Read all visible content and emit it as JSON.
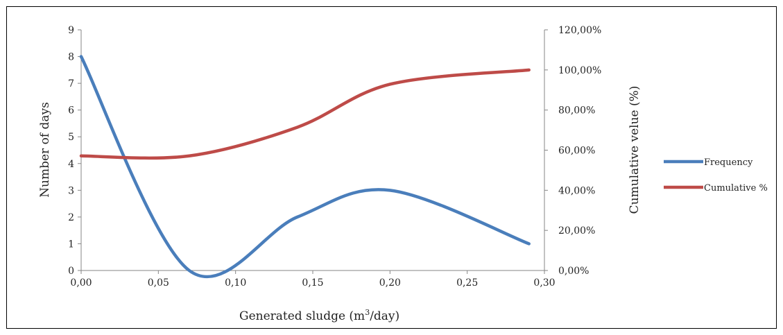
{
  "chart_data": {
    "type": "line",
    "title": "",
    "xlabel": "Generated sludge (m",
    "xlabel_sup": "3",
    "xlabel_tail": "/day)",
    "ylabel": "Number of days",
    "y2label": "Cumulative velue (%)",
    "xlim": [
      0,
      0.3
    ],
    "ylim": [
      0,
      9
    ],
    "y2lim": [
      0,
      1.2
    ],
    "x_ticks": [
      "0,00",
      "0,05",
      "0,10",
      "0,15",
      "0,20",
      "0,25",
      "0,30"
    ],
    "y_ticks": [
      "0",
      "1",
      "2",
      "3",
      "4",
      "5",
      "6",
      "7",
      "8",
      "9"
    ],
    "y2_ticks": [
      "0,00%",
      "20,00%",
      "40,00%",
      "60,00%",
      "80,00%",
      "100,00%",
      "120,00%"
    ],
    "smooth": true,
    "legend_position": "right",
    "series": [
      {
        "name": "Frequency",
        "axis": "left",
        "color": "#4a7ebb",
        "x": [
          0.0,
          0.07,
          0.14,
          0.2,
          0.29
        ],
        "y": [
          8,
          0,
          2,
          3,
          1
        ]
      },
      {
        "name": "Cumulative %",
        "axis": "right",
        "color": "#be4b48",
        "x": [
          0.0,
          0.07,
          0.14,
          0.2,
          0.29
        ],
        "y": [
          0.5714,
          0.5714,
          0.7143,
          0.9286,
          1.0
        ]
      }
    ]
  }
}
